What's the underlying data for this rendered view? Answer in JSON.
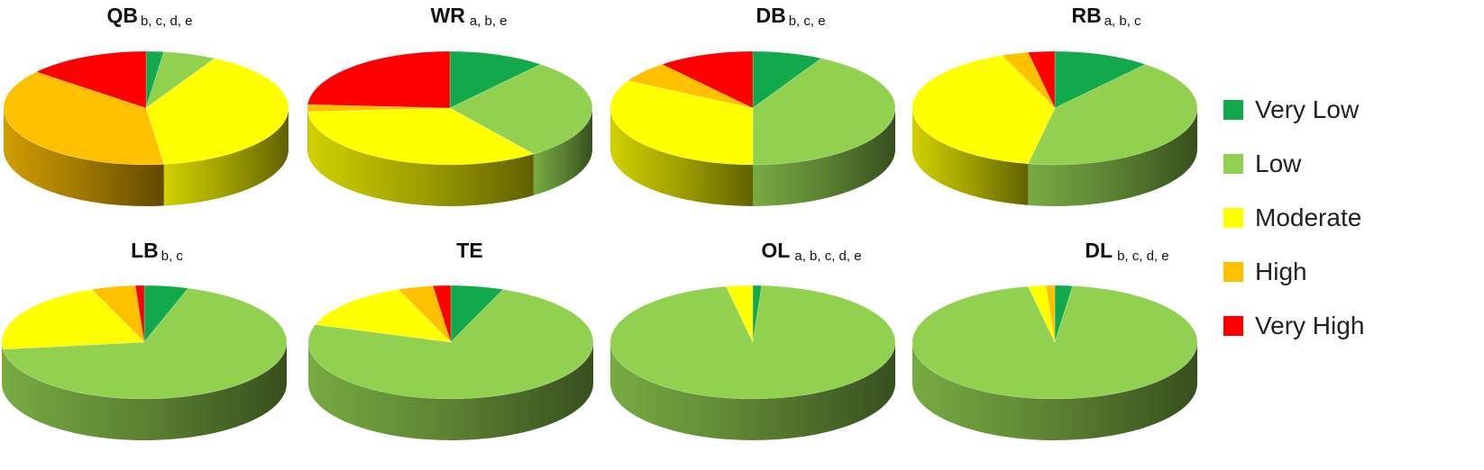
{
  "chart_data": [
    {
      "type": "pie",
      "title": "QB",
      "subtitle": "b, c, d, e",
      "categories": [
        "Very Low",
        "Low",
        "Moderate",
        "High",
        "Very High"
      ],
      "values": [
        2,
        6,
        40,
        38,
        14
      ]
    },
    {
      "type": "pie",
      "title": "WR",
      "subtitle": "a, b, e",
      "categories": [
        "Very Low",
        "Low",
        "Moderate",
        "High",
        "Very High"
      ],
      "values": [
        11,
        29,
        34,
        2,
        24
      ]
    },
    {
      "type": "pie",
      "title": "DB",
      "subtitle": "b, c, e",
      "categories": [
        "Very Low",
        "Low",
        "Moderate",
        "High",
        "Very High"
      ],
      "values": [
        8,
        42,
        33,
        6,
        11
      ]
    },
    {
      "type": "pie",
      "title": "RB",
      "subtitle": "a, b, c",
      "categories": [
        "Very Low",
        "Low",
        "Moderate",
        "High",
        "Very High"
      ],
      "values": [
        11,
        42,
        41,
        3,
        3
      ]
    },
    {
      "type": "pie",
      "title": "LB",
      "subtitle": "b, c",
      "categories": [
        "Very Low",
        "Low",
        "Moderate",
        "High",
        "Very High"
      ],
      "values": [
        5,
        68,
        21,
        5,
        1
      ]
    },
    {
      "type": "pie",
      "title": "TE",
      "subtitle": "",
      "categories": [
        "Very Low",
        "Low",
        "Moderate",
        "High",
        "Very High"
      ],
      "values": [
        6,
        74,
        14,
        4,
        2
      ]
    },
    {
      "type": "pie",
      "title": "OL",
      "subtitle": "a, b, c, d, e",
      "categories": [
        "Very Low",
        "Low",
        "Moderate",
        "High",
        "Very High"
      ],
      "values": [
        1,
        96,
        3,
        0,
        0
      ]
    },
    {
      "type": "pie",
      "title": "DL",
      "subtitle": "b, c, d, e",
      "categories": [
        "Very Low",
        "Low",
        "Moderate",
        "High",
        "Very High"
      ],
      "values": [
        2,
        95,
        2,
        1,
        0
      ]
    }
  ],
  "legend": {
    "items": [
      {
        "label": "Very Low",
        "color": "#12a84c"
      },
      {
        "label": "Low",
        "color": "#92d050"
      },
      {
        "label": "Moderate",
        "color": "#ffff00"
      },
      {
        "label": "High",
        "color": "#ffc000"
      },
      {
        "label": "Very High",
        "color": "#ff0000"
      }
    ]
  }
}
